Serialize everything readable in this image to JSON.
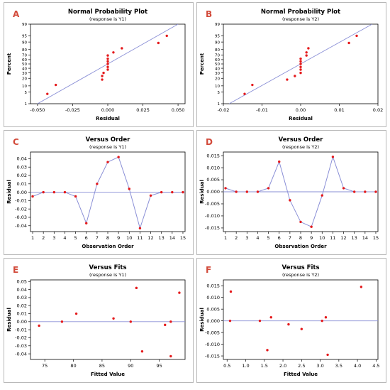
{
  "chart_data": [
    {
      "panel_letter": "A",
      "type": "scatter",
      "title": "Normal Probability Plot",
      "subtitle": "(response is Y1)",
      "xlabel": "Residual",
      "ylabel": "Percent",
      "probability_scale": true,
      "xlim": [
        -0.055,
        0.055
      ],
      "ylim": [
        1,
        99
      ],
      "x_ticks": [
        -0.05,
        -0.025,
        0.0,
        0.025,
        0.05
      ],
      "x_tick_labels": [
        "-0.050",
        "-0.025",
        "0.000",
        "0.025",
        "0.050"
      ],
      "y_ticks": [
        1,
        5,
        10,
        20,
        30,
        40,
        50,
        60,
        70,
        80,
        90,
        95,
        99
      ],
      "y_tick_labels": [
        "1",
        "5",
        "10",
        "20",
        "30",
        "40",
        "50",
        "60",
        "70",
        "80",
        "90",
        "95",
        "99"
      ],
      "reference_line": {
        "x": [
          -0.05,
          0.05
        ],
        "y": [
          1,
          99
        ]
      },
      "points": {
        "x": [
          -0.043,
          -0.037,
          -0.004,
          -0.004,
          -0.003,
          0.0,
          0.0,
          0.0,
          0.0,
          0.0,
          0.0,
          0.004,
          0.01,
          0.036,
          0.042
        ],
        "y": [
          4,
          11,
          18,
          24,
          30,
          37,
          43,
          50,
          56,
          62,
          69,
          75,
          82,
          89,
          95
        ]
      }
    },
    {
      "panel_letter": "B",
      "type": "scatter",
      "title": "Normal Probability Plot",
      "subtitle": "(response is Y2)",
      "xlabel": "Residual",
      "ylabel": "Percent",
      "probability_scale": true,
      "xlim": [
        -0.02,
        0.02
      ],
      "ylim": [
        1,
        99
      ],
      "x_ticks": [
        -0.02,
        -0.01,
        0.0,
        0.01,
        0.02
      ],
      "x_tick_labels": [
        "-0.02",
        "-0.01",
        "0.00",
        "0.01",
        "0.02"
      ],
      "y_ticks": [
        1,
        5,
        10,
        20,
        30,
        40,
        50,
        60,
        70,
        80,
        90,
        95,
        99
      ],
      "y_tick_labels": [
        "1",
        "5",
        "10",
        "20",
        "30",
        "40",
        "50",
        "60",
        "70",
        "80",
        "90",
        "95",
        "99"
      ],
      "reference_line": {
        "x": [
          -0.0185,
          0.0185
        ],
        "y": [
          1,
          99
        ]
      },
      "points": {
        "x": [
          -0.0145,
          -0.0125,
          -0.0035,
          -0.0015,
          0.0,
          0.0,
          0.0,
          0.0,
          0.0,
          0.0,
          0.0015,
          0.0015,
          0.002,
          0.0125,
          0.0145
        ],
        "y": [
          4,
          11,
          18,
          24,
          30,
          37,
          43,
          50,
          56,
          62,
          69,
          75,
          82,
          89,
          95
        ]
      }
    },
    {
      "panel_letter": "C",
      "type": "line",
      "title": "Versus Order",
      "subtitle": "(response is Y1)",
      "xlabel": "Observation Order",
      "ylabel": "Residual",
      "xlim": [
        0.8,
        15.2
      ],
      "ylim": [
        -0.047,
        0.048
      ],
      "x_ticks": [
        1,
        2,
        3,
        4,
        5,
        6,
        7,
        8,
        9,
        10,
        11,
        12,
        13,
        14,
        15
      ],
      "x_tick_labels": [
        "1",
        "2",
        "3",
        "4",
        "5",
        "6",
        "7",
        "8",
        "9",
        "10",
        "11",
        "12",
        "13",
        "14",
        "15"
      ],
      "y_ticks": [
        -0.04,
        -0.03,
        -0.02,
        -0.01,
        0.0,
        0.01,
        0.02,
        0.03,
        0.04
      ],
      "y_tick_labels": [
        "-0.04",
        "-0.03",
        "-0.02",
        "-0.01",
        "0.00",
        "0.01",
        "0.02",
        "0.03",
        "0.04"
      ],
      "reference_y": 0,
      "x": [
        1,
        2,
        3,
        4,
        5,
        6,
        7,
        8,
        9,
        10,
        11,
        12,
        13,
        14,
        15
      ],
      "y": [
        -0.005,
        0.0,
        0.0,
        0.0,
        -0.005,
        -0.037,
        0.01,
        0.036,
        0.042,
        0.004,
        -0.043,
        -0.004,
        0.0,
        0.0,
        0.0
      ]
    },
    {
      "panel_letter": "D",
      "type": "line",
      "title": "Versus Order",
      "subtitle": "(response is Y2)",
      "xlabel": "Observation Order",
      "ylabel": "Residual",
      "xlim": [
        0.8,
        15.2
      ],
      "ylim": [
        -0.0165,
        0.0165
      ],
      "x_ticks": [
        1,
        2,
        3,
        4,
        5,
        6,
        7,
        8,
        9,
        10,
        11,
        12,
        13,
        14,
        15
      ],
      "x_tick_labels": [
        "1",
        "2",
        "3",
        "4",
        "5",
        "6",
        "7",
        "8",
        "9",
        "10",
        "11",
        "12",
        "13",
        "14",
        "15"
      ],
      "y_ticks": [
        -0.015,
        -0.01,
        -0.005,
        0.0,
        0.005,
        0.01,
        0.015
      ],
      "y_tick_labels": [
        "-0.015",
        "-0.010",
        "-0.005",
        "0.000",
        "0.005",
        "0.010",
        "0.015"
      ],
      "reference_y": 0,
      "x": [
        1,
        2,
        3,
        4,
        5,
        6,
        7,
        8,
        9,
        10,
        11,
        12,
        13,
        14,
        15
      ],
      "y": [
        0.0015,
        0.0,
        0.0,
        0.0,
        0.0015,
        0.0125,
        -0.0035,
        -0.0125,
        -0.0145,
        -0.0015,
        0.0145,
        0.0015,
        0.0,
        0.0,
        0.0
      ]
    },
    {
      "panel_letter": "E",
      "type": "scatter",
      "title": "Versus Fits",
      "subtitle": "(response is Y1)",
      "xlabel": "Fitted Value",
      "ylabel": "Residual",
      "xlim": [
        72.5,
        99.5
      ],
      "ylim": [
        -0.047,
        0.052
      ],
      "x_ticks": [
        75,
        80,
        85,
        90,
        95
      ],
      "x_tick_labels": [
        "75",
        "80",
        "85",
        "90",
        "95"
      ],
      "y_ticks": [
        -0.04,
        -0.03,
        -0.02,
        -0.01,
        0.0,
        0.01,
        0.02,
        0.03,
        0.04,
        0.05
      ],
      "y_tick_labels": [
        "-0.04",
        "-0.03",
        "-0.02",
        "-0.01",
        "0.00",
        "0.01",
        "0.02",
        "0.03",
        "0.04",
        "0.05"
      ],
      "reference_y": 0,
      "x": [
        74.0,
        78.0,
        80.5,
        87.0,
        90.0,
        91.0,
        92.0,
        96.0,
        97.0,
        97.0,
        98.5
      ],
      "y": [
        -0.005,
        0.0,
        0.01,
        0.004,
        0.0,
        0.042,
        -0.037,
        -0.004,
        0.0,
        -0.043,
        0.036
      ]
    },
    {
      "panel_letter": "F",
      "type": "scatter",
      "title": "Versus Fits",
      "subtitle": "(response is Y2)",
      "xlabel": "Fitted Value",
      "ylabel": "Residual",
      "xlim": [
        0.4,
        4.55
      ],
      "ylim": [
        -0.0165,
        0.0175
      ],
      "x_ticks": [
        0.5,
        1.0,
        1.5,
        2.0,
        2.5,
        3.0,
        3.5,
        4.0,
        4.5
      ],
      "x_tick_labels": [
        "0.5",
        "1.0",
        "1.5",
        "2.0",
        "2.5",
        "3.0",
        "3.5",
        "4.0",
        "4.5"
      ],
      "y_ticks": [
        -0.015,
        -0.01,
        -0.005,
        0.0,
        0.005,
        0.01,
        0.015
      ],
      "y_tick_labels": [
        "-0.015",
        "-0.010",
        "-0.005",
        "0.000",
        "0.005",
        "0.010",
        "0.015"
      ],
      "reference_y": 0,
      "x": [
        0.58,
        0.6,
        1.38,
        1.58,
        1.68,
        2.15,
        2.5,
        3.05,
        3.15,
        3.2,
        4.1
      ],
      "y": [
        0.0,
        0.0125,
        0.0,
        -0.0125,
        0.0015,
        -0.0015,
        -0.0035,
        0.0,
        0.0015,
        -0.0145,
        0.0145
      ]
    }
  ],
  "colors": {
    "point": "#e41a1c",
    "line": "#8a8fd6",
    "axis": "#000000",
    "letter": "#d24a3a",
    "panel_border": "#b8b8b8"
  }
}
